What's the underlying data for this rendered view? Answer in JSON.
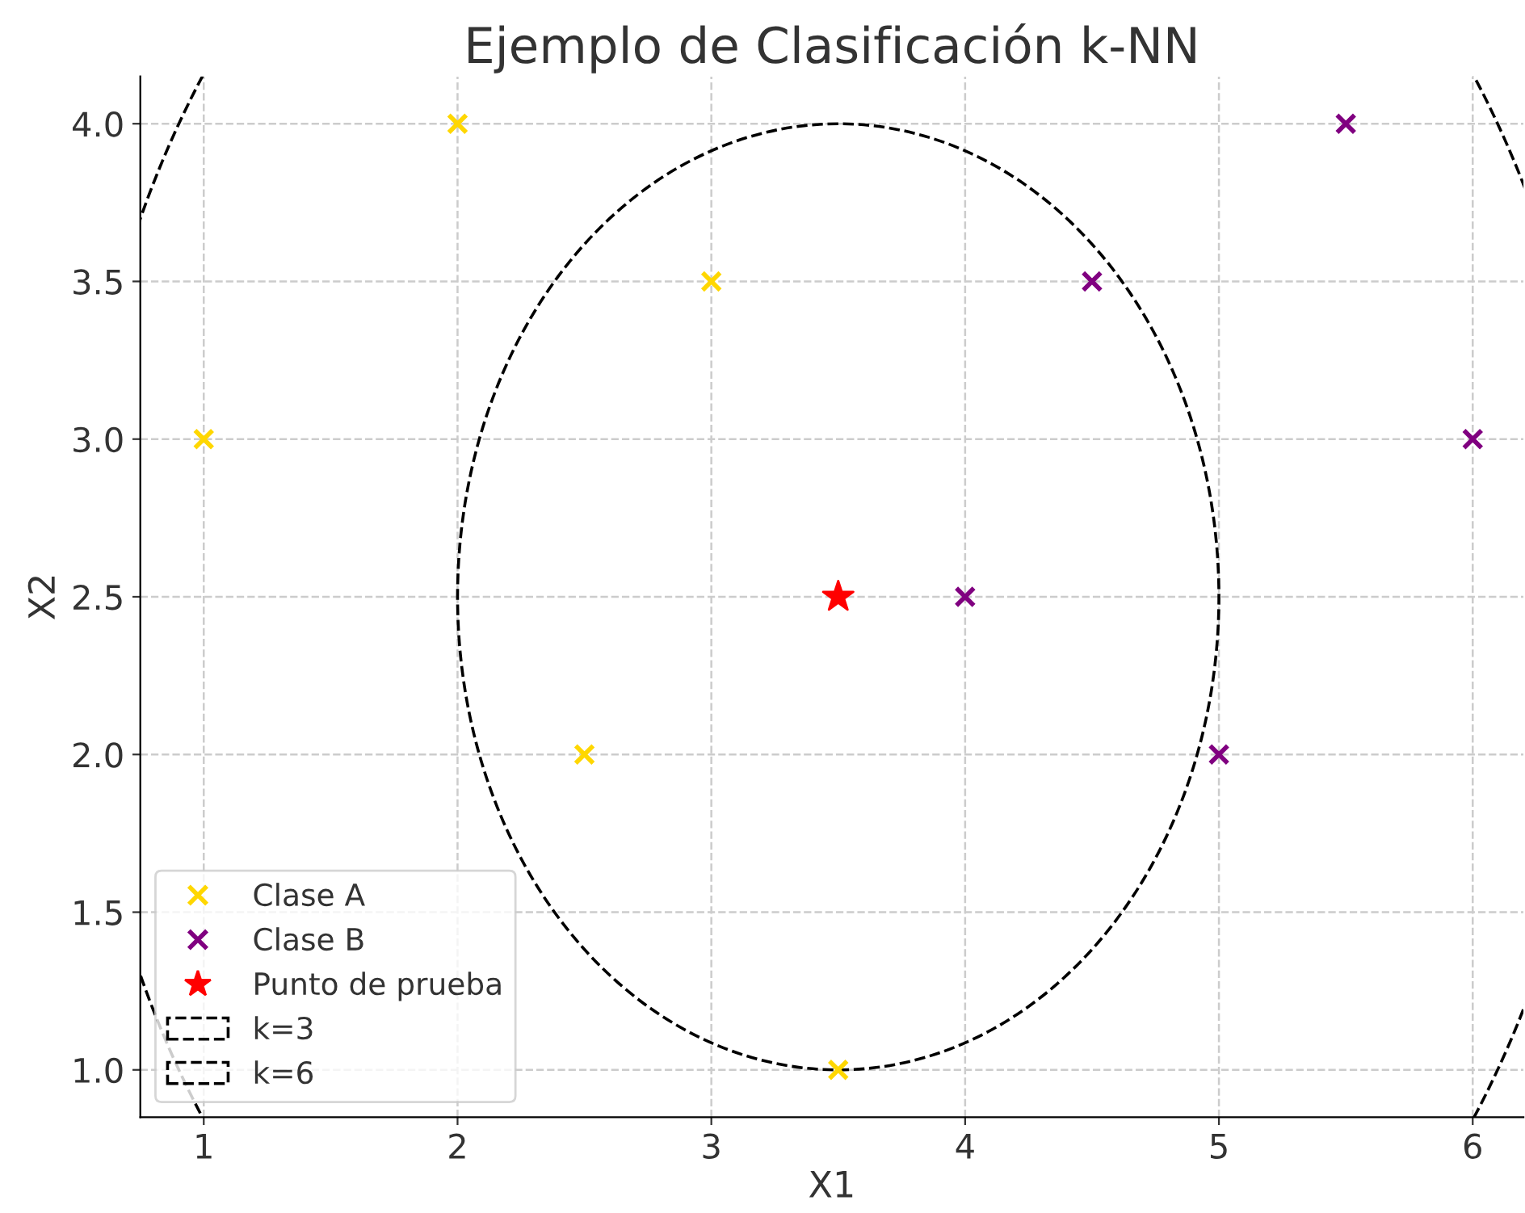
{
  "chart_data": {
    "type": "scatter",
    "title": "Ejemplo de Clasificación k-NN",
    "xlabel": "X1",
    "ylabel": "X2",
    "xlim": [
      0.75,
      6.2
    ],
    "ylim": [
      0.85,
      4.15
    ],
    "xticks": [
      1,
      2,
      3,
      4,
      5,
      6
    ],
    "yticks": [
      {
        "value": 1,
        "label": "1.0"
      },
      {
        "value": 1.5,
        "label": "1.5"
      },
      {
        "value": 2,
        "label": "2.0"
      },
      {
        "value": 2.5,
        "label": "2.5"
      },
      {
        "value": 3,
        "label": "3.0"
      },
      {
        "value": 3.5,
        "label": "3.5"
      },
      {
        "value": 4,
        "label": "4.0"
      }
    ],
    "grid": true,
    "legend": "bottom left",
    "series": [
      {
        "name": "Clase A",
        "color": "#ffd700",
        "marker": "cross",
        "x": [
          1,
          2,
          3,
          2.5,
          3.5
        ],
        "values": [
          3,
          4,
          3.5,
          2,
          1
        ]
      },
      {
        "name": "Clase B",
        "color": "#800080",
        "marker": "cross",
        "x": [
          4,
          4.5,
          5,
          5.5,
          6
        ],
        "values": [
          2.5,
          3.5,
          2,
          4,
          3
        ]
      },
      {
        "name": "Punto de prueba",
        "color": "#ff0000",
        "marker": "star",
        "x": [
          3.5
        ],
        "values": [
          2.5
        ]
      }
    ],
    "annotations": [
      "k=3",
      "k=6"
    ]
  }
}
